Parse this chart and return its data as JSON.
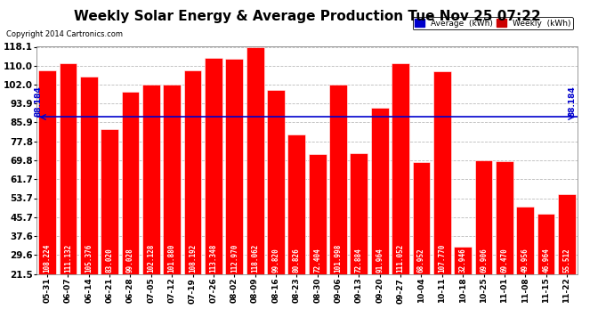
{
  "title": "Weekly Solar Energy & Average Production Tue Nov 25 07:22",
  "copyright": "Copyright 2014 Cartronics.com",
  "categories": [
    "05-31",
    "06-07",
    "06-14",
    "06-21",
    "06-28",
    "07-05",
    "07-12",
    "07-19",
    "07-26",
    "08-02",
    "08-09",
    "08-16",
    "08-23",
    "08-30",
    "09-06",
    "09-13",
    "09-20",
    "09-27",
    "10-04",
    "10-11",
    "10-18",
    "10-25",
    "11-01",
    "11-08",
    "11-15",
    "11-22"
  ],
  "values": [
    108.224,
    111.132,
    105.376,
    83.02,
    99.028,
    102.128,
    101.88,
    108.192,
    113.348,
    112.97,
    118.062,
    99.82,
    80.826,
    72.404,
    101.998,
    72.884,
    91.964,
    111.052,
    68.952,
    107.77,
    32.946,
    69.906,
    69.47,
    49.956,
    46.964,
    55.512
  ],
  "average": 88.184,
  "bar_color": "#ff0000",
  "bar_edge_color": "#ffffff",
  "avg_line_color": "#0000cd",
  "background_color": "#ffffff",
  "plot_bg_color": "#ffffff",
  "grid_color": "#bbbbbb",
  "yticks": [
    21.5,
    29.6,
    37.6,
    45.7,
    53.7,
    61.7,
    69.8,
    77.8,
    85.9,
    93.9,
    102.0,
    110.0,
    118.1
  ],
  "ymin": 21.5,
  "ymax": 118.1,
  "legend_avg_color": "#0000cc",
  "legend_weekly_color": "#cc0000",
  "title_fontsize": 11,
  "bar_text_color": "#ffffff",
  "bar_text_fontsize": 5.5,
  "avg_label_fontsize": 6.5,
  "tick_fontsize": 7.5,
  "xtick_fontsize": 6.5
}
